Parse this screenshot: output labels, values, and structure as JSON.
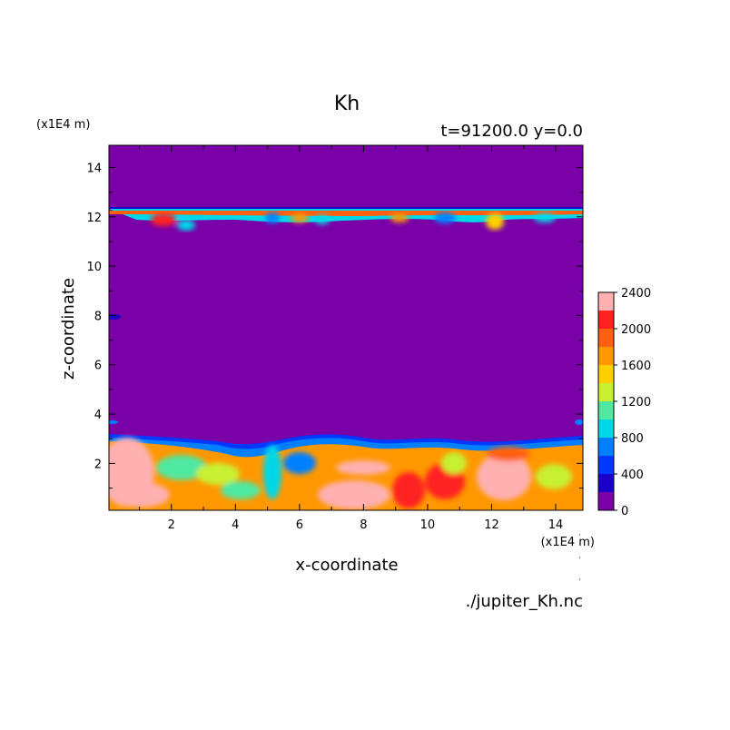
{
  "chart_data": {
    "type": "heatmap",
    "title": "Kh",
    "subtitle": "t=91200.0 y=0.0",
    "xlabel": "x-coordinate",
    "ylabel": "z-coordinate",
    "x_unit": "(x1E4 m)",
    "y_unit": "(x1E4 m)",
    "xlim": [
      0.05,
      14.85
    ],
    "ylim": [
      0.1,
      14.9
    ],
    "x_ticks": [
      2,
      4,
      6,
      8,
      10,
      12,
      14
    ],
    "y_ticks": [
      2,
      4,
      6,
      8,
      10,
      12,
      14
    ],
    "colorbar": {
      "levels": [
        0,
        200,
        400,
        600,
        800,
        1000,
        1200,
        1400,
        1600,
        1800,
        2000,
        2200,
        2400
      ],
      "tick_labels": [
        0,
        400,
        800,
        1200,
        1600,
        2000,
        2400
      ],
      "colors": [
        "#7a00a8",
        "#1a00c8",
        "#0038ff",
        "#0080ff",
        "#00d8e8",
        "#50e8a0",
        "#c8f030",
        "#ffd000",
        "#ff9800",
        "#ff6010",
        "#ff2020",
        "#ffb0b0"
      ]
    },
    "regions": [
      {
        "description": "background",
        "value": 0
      },
      {
        "description": "upper turbulent layer",
        "z_range": [
          11.4,
          12.4
        ],
        "value_range": [
          0,
          2400
        ]
      },
      {
        "description": "lower turbulent layer",
        "z_range": [
          0.1,
          3.2
        ],
        "value_range": [
          0,
          2400
        ]
      }
    ]
  },
  "footer": {
    "filename": "./jupiter_Kh.nc"
  }
}
